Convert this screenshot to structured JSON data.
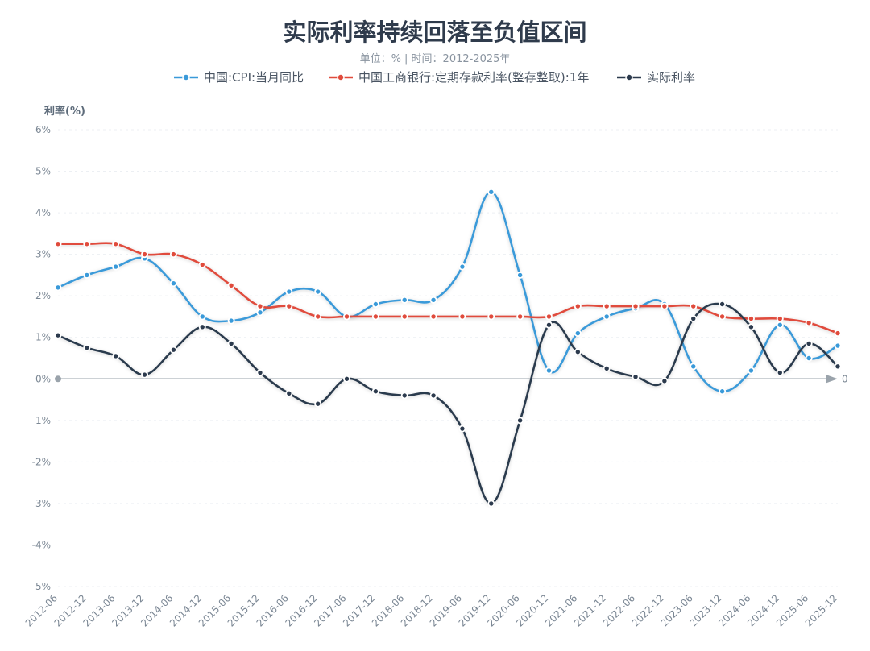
{
  "chart_data": {
    "type": "line",
    "title": "实际利率持续回落至负值区间",
    "subtitle": "单位：% | 时间：2012-2025年",
    "ylabel": "利率(%)",
    "zero_label": "0",
    "ylim": [
      -5,
      6
    ],
    "yticks": [
      "-5%",
      "-4%",
      "-3%",
      "-2%",
      "-1%",
      "0%",
      "1%",
      "2%",
      "3%",
      "4%",
      "5%",
      "6%"
    ],
    "grid": true,
    "legend_position": "top",
    "categories": [
      "2012-06",
      "2012-12",
      "2013-06",
      "2013-12",
      "2014-06",
      "2014-12",
      "2015-06",
      "2015-12",
      "2016-06",
      "2016-12",
      "2017-06",
      "2017-12",
      "2018-06",
      "2018-12",
      "2019-06",
      "2019-12",
      "2020-06",
      "2020-12",
      "2021-06",
      "2021-12",
      "2022-06",
      "2022-12",
      "2023-06",
      "2023-12",
      "2024-06",
      "2024-12",
      "2025-06",
      "2025-12"
    ],
    "series": [
      {
        "name": "中国:CPI:当月同比",
        "color": "#3a9ad9",
        "values": [
          2.2,
          2.5,
          2.7,
          2.9,
          2.3,
          1.5,
          1.4,
          1.6,
          2.1,
          2.1,
          1.5,
          1.8,
          1.9,
          1.9,
          2.7,
          4.5,
          2.5,
          0.2,
          1.1,
          1.5,
          1.7,
          1.8,
          0.3,
          -0.3,
          0.2,
          1.3,
          0.5,
          0.8
        ]
      },
      {
        "name": "中国工商银行:定期存款利率(整存整取):1年",
        "color": "#e04b3c",
        "values": [
          3.25,
          3.25,
          3.25,
          3.0,
          3.0,
          2.75,
          2.25,
          1.75,
          1.75,
          1.5,
          1.5,
          1.5,
          1.5,
          1.5,
          1.5,
          1.5,
          1.5,
          1.5,
          1.75,
          1.75,
          1.75,
          1.75,
          1.75,
          1.5,
          1.45,
          1.45,
          1.35,
          1.1
        ]
      },
      {
        "name": "实际利率",
        "color": "#2c3a4d",
        "values": [
          1.05,
          0.75,
          0.55,
          0.1,
          0.7,
          1.25,
          0.85,
          0.15,
          -0.35,
          -0.6,
          0.0,
          -0.3,
          -0.4,
          -0.4,
          -1.2,
          -3.0,
          -1.0,
          1.3,
          0.65,
          0.25,
          0.05,
          -0.05,
          1.45,
          1.8,
          1.25,
          0.15,
          0.85,
          0.3
        ]
      }
    ]
  }
}
